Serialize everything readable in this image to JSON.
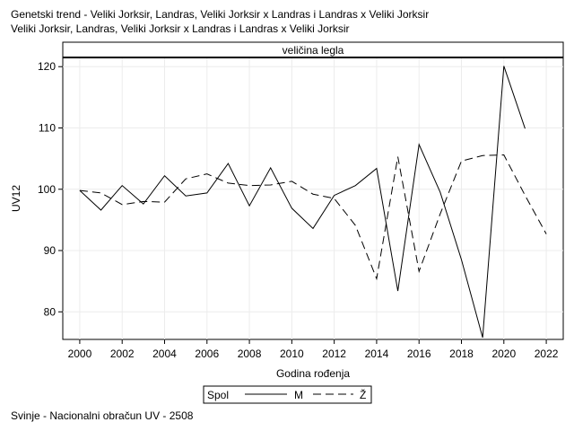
{
  "title_lines": [
    "Genetski trend - Veliki Jorksir, Landras, Veliki Jorksir x Landras i Landras x Veliki Jorksir",
    "Veliki Jorksir, Landras, Veliki Jorksir x Landras i Landras x Veliki Jorksir"
  ],
  "footnote": "Svinje - Nacionalni obračun UV - 2508",
  "chart_data": {
    "type": "line",
    "panel_label": "veličina legla",
    "xlabel": "Godina rođenja",
    "ylabel": "UV12",
    "xlim": [
      1999.2,
      2022.8
    ],
    "ylim": [
      75.5,
      121.5
    ],
    "x_ticks": [
      2000,
      2002,
      2004,
      2006,
      2008,
      2010,
      2012,
      2014,
      2016,
      2018,
      2020,
      2022
    ],
    "y_ticks": [
      80,
      90,
      100,
      110,
      120
    ],
    "grid": true,
    "legend": {
      "title": "Spol",
      "position": "bottom"
    },
    "series": [
      {
        "name": "M",
        "line_style": "solid",
        "x": [
          2000,
          2001,
          2002,
          2003,
          2004,
          2005,
          2006,
          2007,
          2008,
          2009,
          2010,
          2011,
          2012,
          2013,
          2014,
          2015,
          2016,
          2017,
          2018,
          2019,
          2020,
          2021
        ],
        "y": [
          99.8,
          96.6,
          100.6,
          97.6,
          102.2,
          98.9,
          99.4,
          104.2,
          97.3,
          103.5,
          96.9,
          93.6,
          99.0,
          100.6,
          103.4,
          83.4,
          107.3,
          99.5,
          88.5,
          75.8,
          120.1,
          109.9
        ]
      },
      {
        "name": "Ž",
        "line_style": "dashed",
        "x": [
          2000,
          2001,
          2002,
          2003,
          2004,
          2005,
          2006,
          2007,
          2008,
          2009,
          2010,
          2011,
          2012,
          2013,
          2014,
          2015,
          2016,
          2017,
          2018,
          2019,
          2020,
          2021,
          2022
        ],
        "y": [
          99.8,
          99.4,
          97.5,
          98.0,
          97.9,
          101.7,
          102.5,
          101.0,
          100.6,
          100.7,
          101.3,
          99.2,
          98.5,
          94.1,
          85.4,
          105.3,
          86.6,
          96.0,
          104.6,
          105.5,
          105.6,
          99.0,
          92.7
        ]
      }
    ]
  }
}
